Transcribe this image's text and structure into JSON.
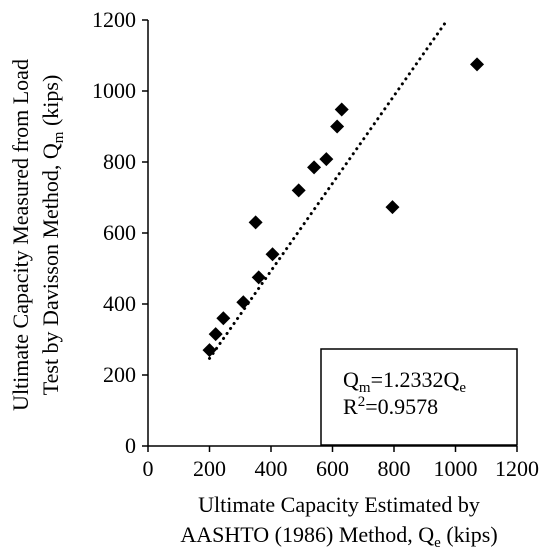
{
  "chart_data": {
    "type": "scatter",
    "title": "",
    "xlabel": {
      "line1": "Ultimate Capacity Estimated by",
      "line2_prefix": "AASHTO (1986) Method, Q",
      "line2_sub": "e",
      "line2_suffix": " (kips)"
    },
    "ylabel": {
      "line1": "Ultimate Capacity Measured from Load",
      "line2_prefix": "Test by Davisson Method, Q",
      "line2_sub": "m",
      "line2_suffix": " (kips)"
    },
    "xlim": [
      0,
      1200
    ],
    "ylim": [
      0,
      1200
    ],
    "xticks": [
      0,
      200,
      400,
      600,
      800,
      1000,
      1200
    ],
    "yticks": [
      0,
      200,
      400,
      600,
      800,
      1000,
      1200
    ],
    "xtick_labels": [
      "0",
      "200",
      "400",
      "600",
      "800",
      "1000",
      "1200"
    ],
    "ytick_labels": [
      "0",
      "200",
      "400",
      "600",
      "800",
      "1000",
      "1200"
    ],
    "grid": false,
    "marker": "diamond",
    "marker_color": "#000000",
    "points": [
      {
        "x": 200,
        "y": 270
      },
      {
        "x": 220,
        "y": 315
      },
      {
        "x": 245,
        "y": 360
      },
      {
        "x": 310,
        "y": 405
      },
      {
        "x": 350,
        "y": 630
      },
      {
        "x": 360,
        "y": 475
      },
      {
        "x": 405,
        "y": 540
      },
      {
        "x": 490,
        "y": 720
      },
      {
        "x": 540,
        "y": 785
      },
      {
        "x": 580,
        "y": 808
      },
      {
        "x": 615,
        "y": 900
      },
      {
        "x": 630,
        "y": 948
      },
      {
        "x": 795,
        "y": 673
      },
      {
        "x": 1070,
        "y": 1075
      }
    ],
    "trendline": {
      "style": "dotted",
      "slope": 1.2332,
      "x_range": [
        200,
        973
      ]
    },
    "annotation": {
      "eq_prefix": "Q",
      "eq_sub1": "m",
      "eq_mid": "=1.2332Q",
      "eq_sub2": "e",
      "r2_prefix": "R",
      "r2_sup": "2",
      "r2_suffix": "=0.9578",
      "placement": "bottom-right"
    }
  }
}
